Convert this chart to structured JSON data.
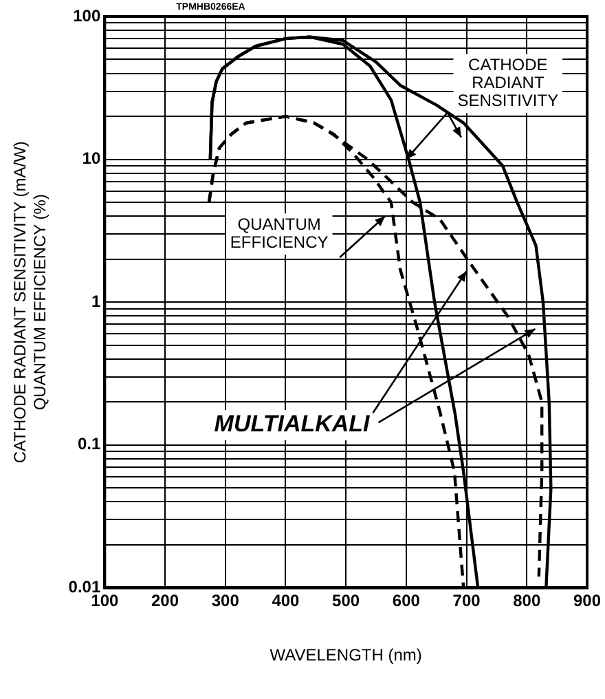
{
  "chart_data": {
    "type": "line",
    "xlabel": "WAVELENGTH (nm)",
    "ylabel": "CATHODE RADIANT SENSITIVITY (mA/W)\nQUANTUM EFFICIENCY (%)",
    "log": "y",
    "grid": true,
    "legend": false,
    "marker": "none",
    "xlim": [
      100,
      900
    ],
    "xticks": [
      100,
      200,
      300,
      400,
      500,
      600,
      700,
      800,
      900
    ],
    "ylim": [
      0.01,
      100
    ],
    "yticks": [
      0.01,
      {
        "value": 0.02,
        "label": null
      },
      {
        "value": 0.03,
        "label": null
      },
      {
        "value": 0.04,
        "label": null
      },
      {
        "value": 0.05,
        "label": null
      },
      {
        "value": 0.06,
        "label": null
      },
      {
        "value": 0.07,
        "label": null
      },
      {
        "value": 0.08,
        "label": null
      },
      {
        "value": 0.09,
        "label": null
      },
      0.1,
      {
        "value": 0.2,
        "label": null
      },
      {
        "value": 0.3,
        "label": null
      },
      {
        "value": 0.4,
        "label": null
      },
      {
        "value": 0.5,
        "label": null
      },
      {
        "value": 0.6,
        "label": null
      },
      {
        "value": 0.7,
        "label": null
      },
      {
        "value": 0.8,
        "label": null
      },
      {
        "value": 0.9,
        "label": null
      },
      1,
      {
        "value": 2,
        "label": null
      },
      {
        "value": 3,
        "label": null
      },
      {
        "value": 4,
        "label": null
      },
      {
        "value": 5,
        "label": null
      },
      {
        "value": 6,
        "label": null
      },
      {
        "value": 7,
        "label": null
      },
      {
        "value": 8,
        "label": null
      },
      {
        "value": 9,
        "label": null
      },
      10,
      {
        "value": 20,
        "label": null
      },
      {
        "value": 30,
        "label": null
      },
      {
        "value": 40,
        "label": null
      },
      {
        "value": 50,
        "label": null
      },
      {
        "value": 60,
        "label": null
      },
      {
        "value": 70,
        "label": null
      },
      {
        "value": 80,
        "label": null
      },
      {
        "value": 90,
        "label": null
      },
      100
    ],
    "series": [
      {
        "color": "#000000",
        "line_style": "solid",
        "x": [
          275,
          278,
          285,
          295,
          320,
          350,
          400,
          440,
          495,
          540,
          575,
          604,
          623,
          647,
          681,
          695,
          719
        ],
        "values": [
          10,
          25,
          35,
          43,
          52,
          62,
          70,
          72,
          64,
          45,
          26,
          10,
          5,
          1,
          0.165,
          0.065,
          0.01
        ]
      },
      {
        "color": "#000000",
        "line_style": "solid",
        "x": [
          275,
          278,
          285,
          295,
          320,
          350,
          400,
          440,
          495,
          550,
          590,
          650,
          695,
          760,
          784,
          815,
          827,
          837,
          840,
          832
        ],
        "values": [
          10,
          25,
          35,
          43,
          52,
          62,
          70,
          72,
          68,
          48,
          33,
          24,
          18,
          9,
          5,
          2.5,
          1,
          0.2,
          0.05,
          0.01
        ]
      },
      {
        "color": "#000000",
        "line_style": "dashed",
        "x": [
          273,
          280,
          290,
          310,
          335,
          400,
          447,
          480,
          512,
          545,
          575,
          590,
          620,
          656,
          680,
          695
        ],
        "values": [
          5,
          8,
          12,
          15,
          18,
          20,
          18,
          15,
          11,
          7.5,
          5,
          1.7,
          0.62,
          0.17,
          0.065,
          0.01
        ]
      },
      {
        "color": "#000000",
        "line_style": "dashed",
        "x": [
          273,
          280,
          290,
          310,
          335,
          400,
          447,
          478,
          536,
          611,
          656,
          705,
          768,
          803,
          825,
          825,
          820
        ],
        "values": [
          5,
          8,
          12,
          15,
          18,
          20,
          18,
          15,
          10,
          5,
          3.8,
          1.9,
          0.8,
          0.43,
          0.2,
          0.065,
          0.012
        ]
      }
    ],
    "annotations": [
      "TPMHB0266EA",
      {
        "text": "CATHODE\nRADIANT\nSENSITIVITY",
        "x": 600,
        "y": 10
      },
      {
        "text": "QUANTUM\nEFFICIENCY",
        "x": 565,
        "y": 4
      },
      {
        "text": "MULTIALKALI",
        "x": 700,
        "y": 1.65
      }
    ]
  }
}
